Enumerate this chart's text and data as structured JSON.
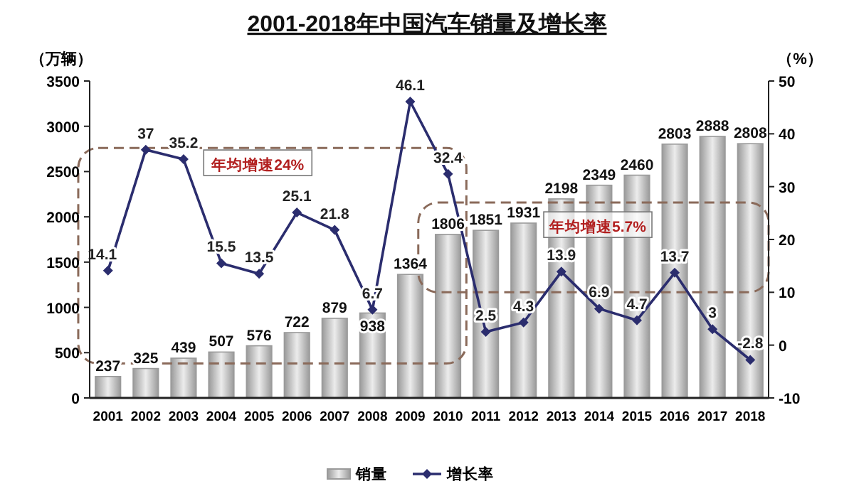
{
  "chart_data": {
    "type": "bar",
    "title": "2001-2018年中国汽车销量及增长率",
    "ylabel": "（万辆）",
    "y2label": "（%）",
    "categories": [
      "2001",
      "2002",
      "2003",
      "2004",
      "2005",
      "2006",
      "2007",
      "2008",
      "2009",
      "2010",
      "2011",
      "2012",
      "2013",
      "2014",
      "2015",
      "2016",
      "2017",
      "2018"
    ],
    "series": [
      {
        "name": "销量",
        "color": "#9a9a9a",
        "values": [
          237,
          325,
          439,
          507,
          576,
          722,
          879,
          938,
          1364,
          1806,
          1851,
          1931,
          2198,
          2349,
          2460,
          2803,
          2888,
          2808
        ]
      },
      {
        "name": "增长率",
        "type": "line",
        "axis": "y2",
        "color": "#2b2d6e",
        "marker": "diamond",
        "values": [
          14.1,
          37,
          35.2,
          15.5,
          13.5,
          25.1,
          21.8,
          6.7,
          46.1,
          32.4,
          2.5,
          4.3,
          13.9,
          6.9,
          4.7,
          13.7,
          3,
          -2.8
        ]
      }
    ],
    "ylim": [
      0,
      3500
    ],
    "yticks": [
      0,
      500,
      1000,
      1500,
      2000,
      2500,
      3000,
      3500
    ],
    "y2lim": [
      -10,
      50
    ],
    "y2ticks": [
      -10,
      0,
      10,
      20,
      30,
      40,
      50
    ],
    "data_labels": true,
    "legend": "bottom",
    "grid": false,
    "annotations": [
      "年均增速24%",
      "年均增速5.7%"
    ]
  }
}
